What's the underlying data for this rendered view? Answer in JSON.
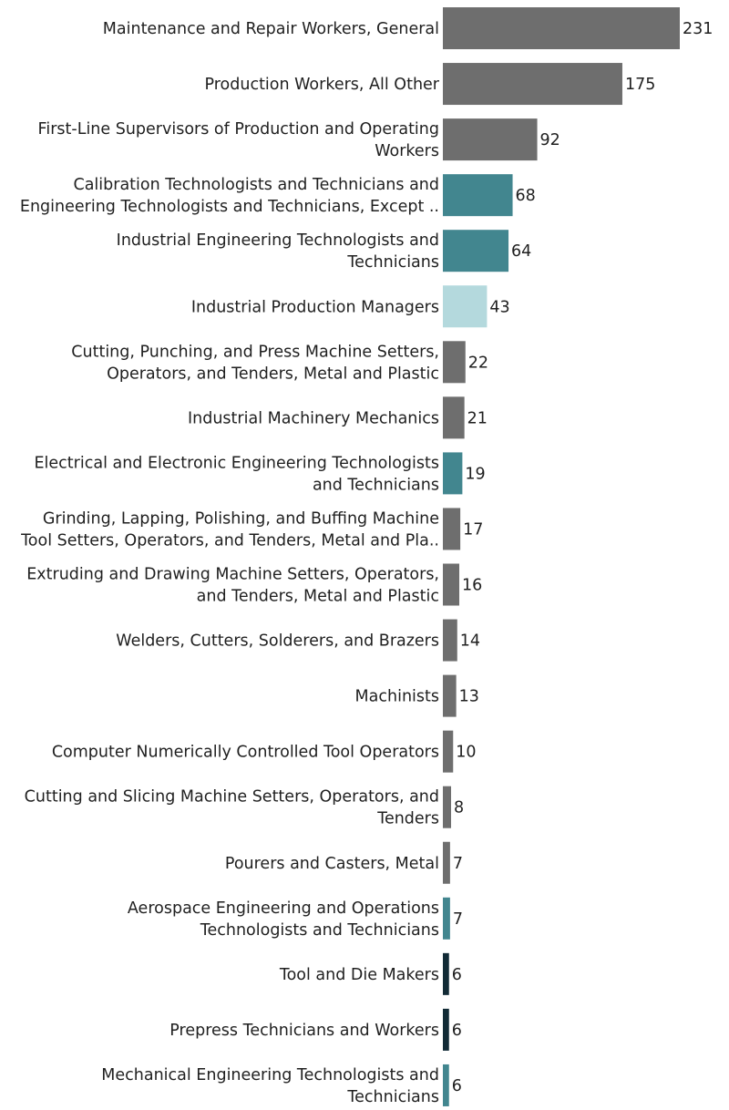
{
  "chart_data": {
    "type": "bar",
    "orientation": "horizontal",
    "title": "",
    "xlabel": "",
    "ylabel": "",
    "grid": false,
    "xlim": [
      0,
      231
    ],
    "categories": [
      [
        "Maintenance and Repair Workers, General"
      ],
      [
        "Production Workers, All Other"
      ],
      [
        "First-Line Supervisors of Production and Operating",
        "Workers"
      ],
      [
        "Calibration Technologists and Technicians and",
        "Engineering Technologists and Technicians, Except .."
      ],
      [
        "Industrial Engineering Technologists and",
        "Technicians"
      ],
      [
        "Industrial Production Managers"
      ],
      [
        "Cutting, Punching, and Press Machine Setters,",
        "Operators, and Tenders, Metal and Plastic"
      ],
      [
        "Industrial Machinery Mechanics"
      ],
      [
        "Electrical and Electronic Engineering Technologists",
        "and Technicians"
      ],
      [
        "Grinding, Lapping, Polishing, and Buffing Machine",
        "Tool Setters, Operators, and Tenders, Metal and Pla.."
      ],
      [
        "Extruding and Drawing Machine Setters, Operators,",
        "and Tenders, Metal and Plastic"
      ],
      [
        "Welders, Cutters, Solderers, and Brazers"
      ],
      [
        "Machinists"
      ],
      [
        "Computer Numerically Controlled Tool Operators"
      ],
      [
        "Cutting and Slicing Machine Setters, Operators, and",
        "Tenders"
      ],
      [
        "Pourers and Casters, Metal"
      ],
      [
        "Aerospace Engineering and Operations",
        "Technologists and Technicians"
      ],
      [
        "Tool and Die Makers"
      ],
      [
        "Prepress Technicians and Workers"
      ],
      [
        "Mechanical Engineering Technologists and",
        "Technicians"
      ]
    ],
    "values": [
      231,
      175,
      92,
      68,
      64,
      43,
      22,
      21,
      19,
      17,
      16,
      14,
      13,
      10,
      8,
      7,
      7,
      6,
      6,
      6
    ],
    "value_labels": [
      "231",
      "175",
      "92",
      "68",
      "64",
      "43",
      "22",
      "21",
      "19",
      "17",
      "16",
      "14",
      "13",
      "10",
      "8",
      "7",
      "7",
      "6",
      "6",
      "6"
    ],
    "bar_colors": [
      "#6e6e6e",
      "#6e6e6e",
      "#6e6e6e",
      "#42868f",
      "#42868f",
      "#b4d9dd",
      "#6e6e6e",
      "#6e6e6e",
      "#42868f",
      "#6e6e6e",
      "#6e6e6e",
      "#6e6e6e",
      "#6e6e6e",
      "#6e6e6e",
      "#6e6e6e",
      "#6e6e6e",
      "#42868f",
      "#122b36",
      "#122b36",
      "#42868f"
    ]
  }
}
